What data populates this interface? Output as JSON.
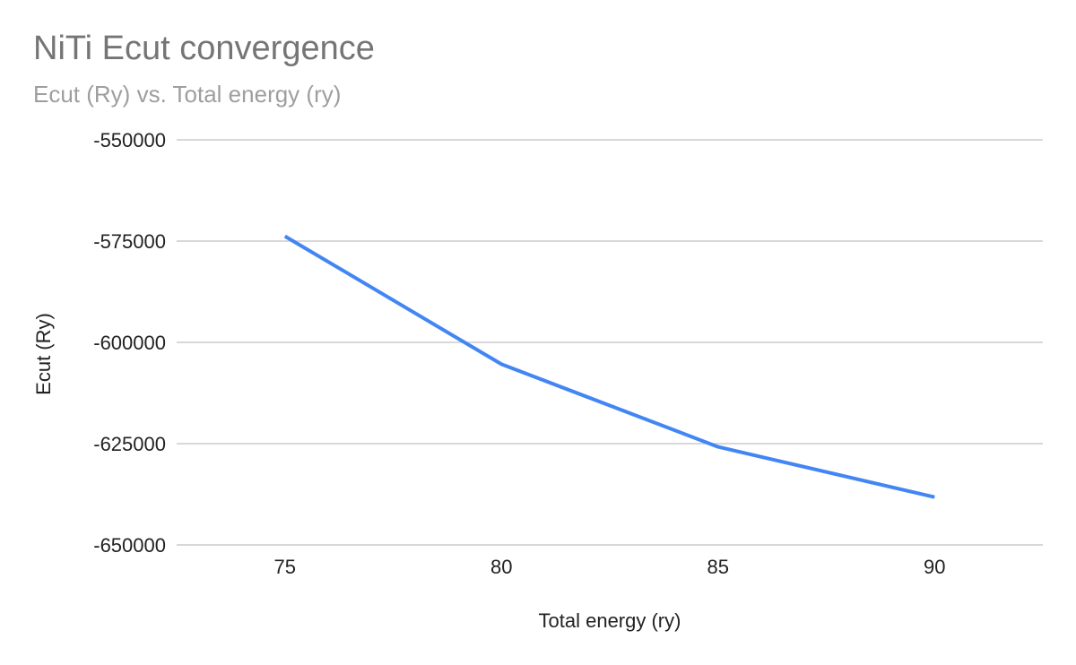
{
  "chart_data": {
    "type": "line",
    "title": "NiTi Ecut convergence",
    "subtitle": "Ecut (Ry) vs. Total energy (ry)",
    "xlabel": "Total energy (ry)",
    "ylabel": "Ecut (Ry)",
    "x": [
      75,
      80,
      85,
      90
    ],
    "series": [
      {
        "values": [
          -573800,
          -605400,
          -625800,
          -638200
        ],
        "color": "#4285f4"
      }
    ],
    "xlim": [
      72.5,
      92.5
    ],
    "ylim": [
      -650000,
      -550000
    ],
    "xticks": [
      75,
      80,
      85,
      90
    ],
    "xtick_labels": [
      "75",
      "80",
      "85",
      "90"
    ],
    "yticks": [
      -550000,
      -575000,
      -600000,
      -625000,
      -650000
    ],
    "ytick_labels": [
      "-550000",
      "-575000",
      "-600000",
      "-625000",
      "-650000"
    ],
    "grid": true,
    "gridline_color": "#cccccc",
    "legend": "none"
  }
}
